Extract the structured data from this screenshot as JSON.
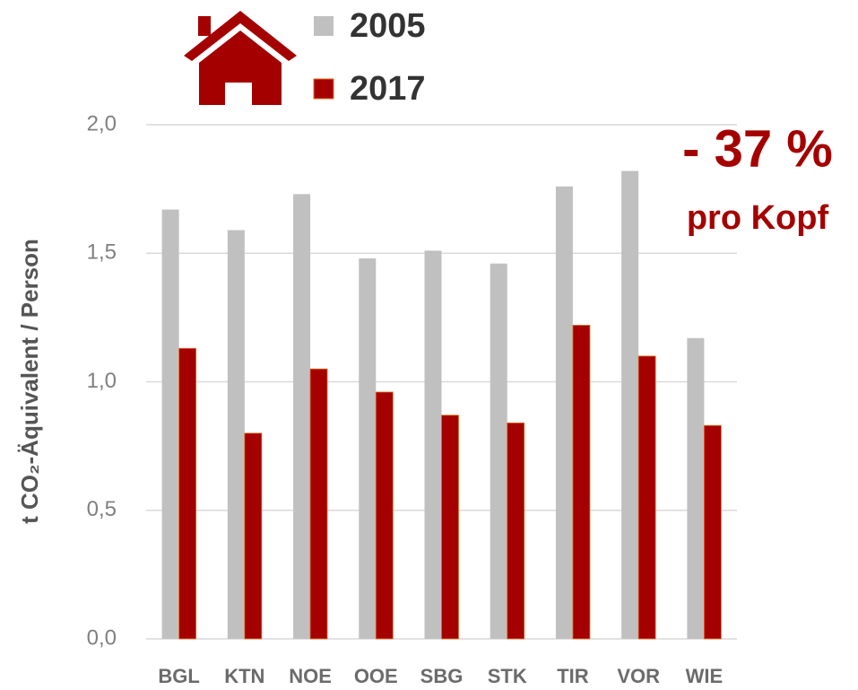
{
  "chart_data": {
    "type": "bar",
    "y_label": "t CO₂-Äquivalent / Person",
    "annotations": [
      "- 37 %",
      "pro Kopf"
    ],
    "categories": [
      "BGL",
      "KTN",
      "NOE",
      "OOE",
      "SBG",
      "STK",
      "TIR",
      "VOR",
      "WIE"
    ],
    "series": [
      {
        "name": "2005",
        "color": "#c0c0c0",
        "values": [
          1.67,
          1.59,
          1.73,
          1.48,
          1.51,
          1.46,
          1.76,
          1.82,
          1.17
        ]
      },
      {
        "name": "2017",
        "color": "#a50000",
        "values": [
          1.13,
          0.8,
          1.05,
          0.96,
          0.87,
          0.84,
          1.22,
          1.1,
          0.83
        ]
      }
    ],
    "ylim": [
      0,
      2
    ],
    "yticks": [
      {
        "value": 0,
        "label": "0,0"
      },
      {
        "value": 0.5,
        "label": "0,5"
      },
      {
        "value": 1,
        "label": "1,0"
      },
      {
        "value": 1.5,
        "label": "1,5"
      },
      {
        "value": 2,
        "label": "2,0"
      }
    ],
    "grid": true
  }
}
